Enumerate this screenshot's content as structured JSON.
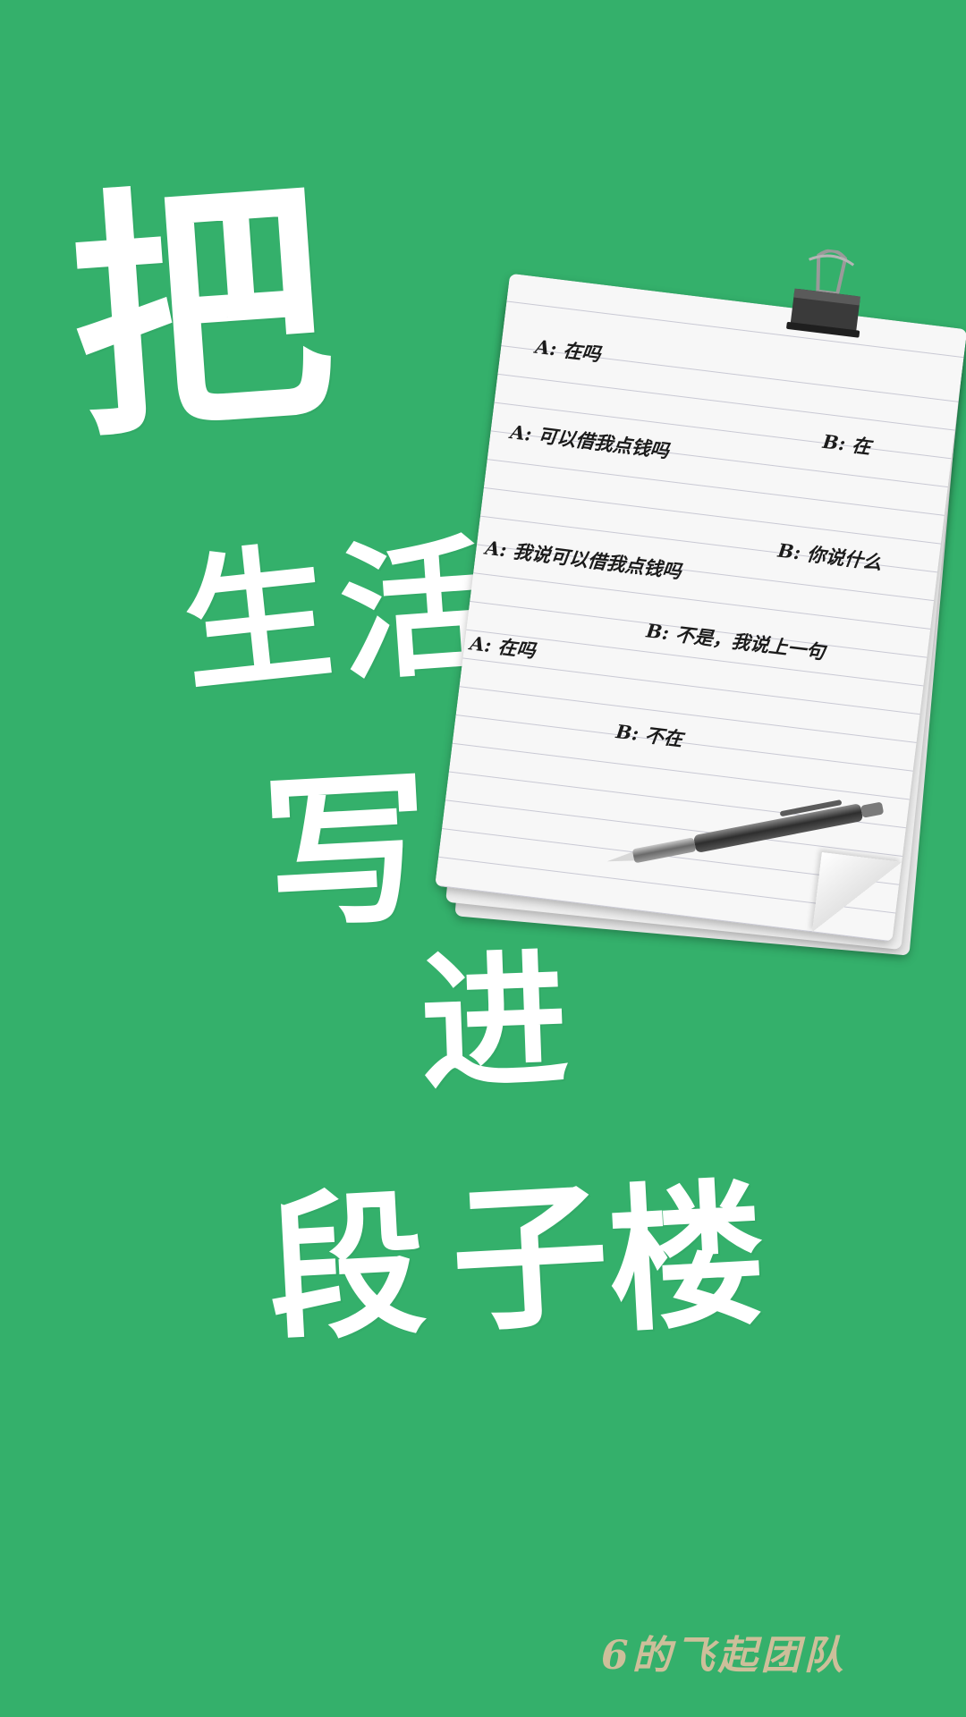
{
  "slogan": {
    "chars": [
      "把",
      "生",
      "活",
      "写",
      "进",
      "段",
      "子",
      "楼"
    ]
  },
  "notepad": {
    "dialog": [
      "A: 在吗",
      "B: 在",
      "A: 可以借我点钱吗",
      "B: 你说什么",
      "A: 我说可以借我点钱吗",
      "B: 不是，我说上一句",
      "A: 在吗",
      "B: 不在"
    ]
  },
  "footer": {
    "team": "6的飞起团队"
  },
  "colors": {
    "background": "#34b06b",
    "slogan_text": "#ffffff",
    "team_text": "#cdbf9a"
  },
  "icons": [
    "binder-clip-icon",
    "pen-icon"
  ]
}
